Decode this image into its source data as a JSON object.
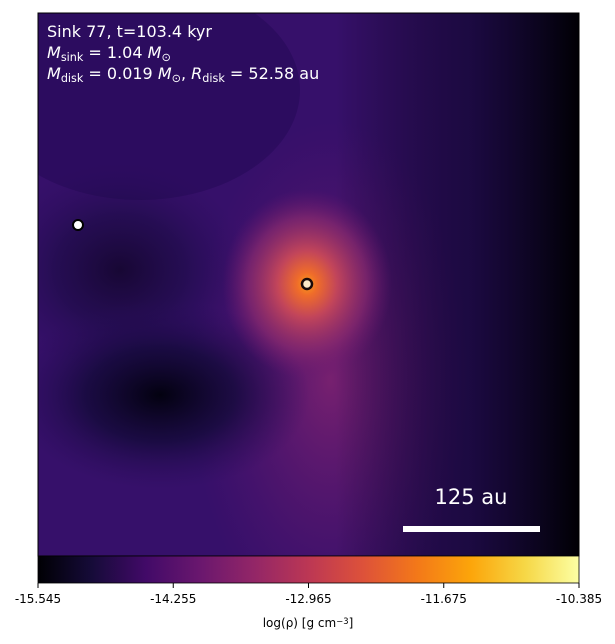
{
  "chart_data": {
    "type": "density-map",
    "annotations": [
      [
        {
          "text": "Sink 77, t=103.4 kyr"
        }
      ],
      [
        {
          "text": "M",
          "style": "italic"
        },
        {
          "text": "sink",
          "style": "sub"
        },
        {
          "text": " = 1.04 "
        },
        {
          "text": "M",
          "style": "italic"
        },
        {
          "text": "⊙",
          "style": "sub"
        }
      ],
      [
        {
          "text": "M",
          "style": "italic"
        },
        {
          "text": "disk",
          "style": "sub"
        },
        {
          "text": " = 0.019 "
        },
        {
          "text": "M",
          "style": "italic"
        },
        {
          "text": "⊙",
          "style": "sub"
        },
        {
          "text": ", "
        },
        {
          "text": "R",
          "style": "italic"
        },
        {
          "text": "disk",
          "style": "sub"
        },
        {
          "text": " = 52.58 au"
        }
      ]
    ],
    "scale_bar": "125 au",
    "colormap": "inferno",
    "colorbar": {
      "lim": [
        -15.545,
        -10.385
      ],
      "ticks": [
        -15.545,
        -14.255,
        -12.965,
        -11.675,
        -10.385
      ],
      "label": [
        {
          "text": "log(ρ) [g cm"
        },
        {
          "text": "−3",
          "style": "sup"
        },
        {
          "text": "]"
        }
      ]
    }
  }
}
